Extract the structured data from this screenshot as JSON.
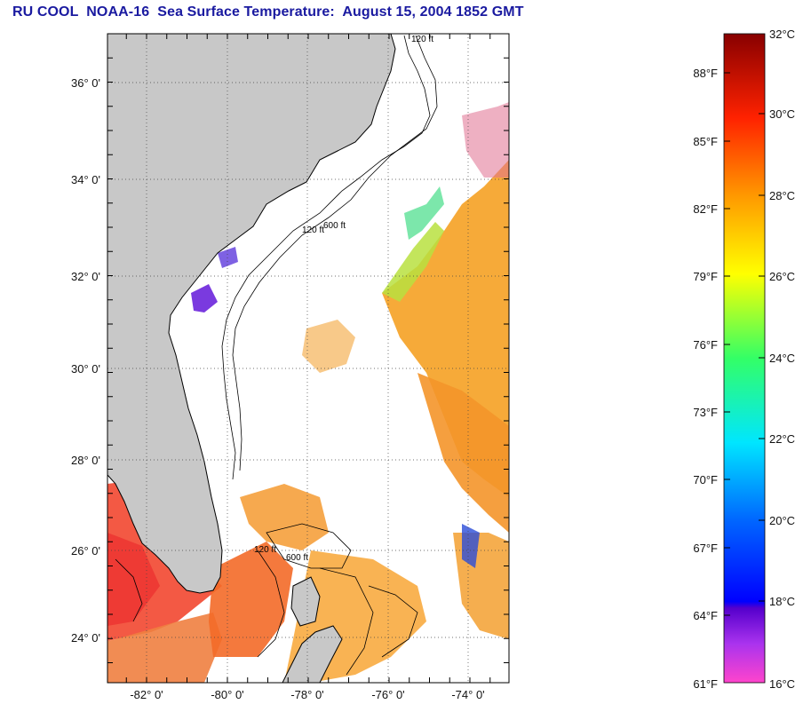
{
  "title": "RU COOL  NOAA-16  Sea Surface Temperature:  August 15, 2004 1852 GMT",
  "map": {
    "lat_labels": [
      "36° 0'",
      "34° 0'",
      "32° 0'",
      "30° 0'",
      "28° 0'",
      "26° 0'",
      "24° 0'"
    ],
    "lon_labels": [
      "-82° 0'",
      "-80° 0'",
      "-78° 0'",
      "-76° 0'",
      "-74° 0'"
    ],
    "lat_range": [
      23,
      37.2
    ],
    "lon_range": [
      -83,
      -73
    ],
    "land_color": "#c8c8c8",
    "isobath_labels": [
      "120 ft",
      "600 ft"
    ]
  },
  "colorbar": {
    "fahrenheit_labels": [
      "88°F",
      "85°F",
      "82°F",
      "79°F",
      "76°F",
      "73°F",
      "70°F",
      "67°F",
      "64°F",
      "61°F"
    ],
    "celsius_labels": [
      "32°C",
      "30°C",
      "28°C",
      "26°C",
      "24°C",
      "22°C",
      "20°C",
      "18°C",
      "16°C"
    ],
    "celsius_range": [
      16,
      32
    ]
  }
}
